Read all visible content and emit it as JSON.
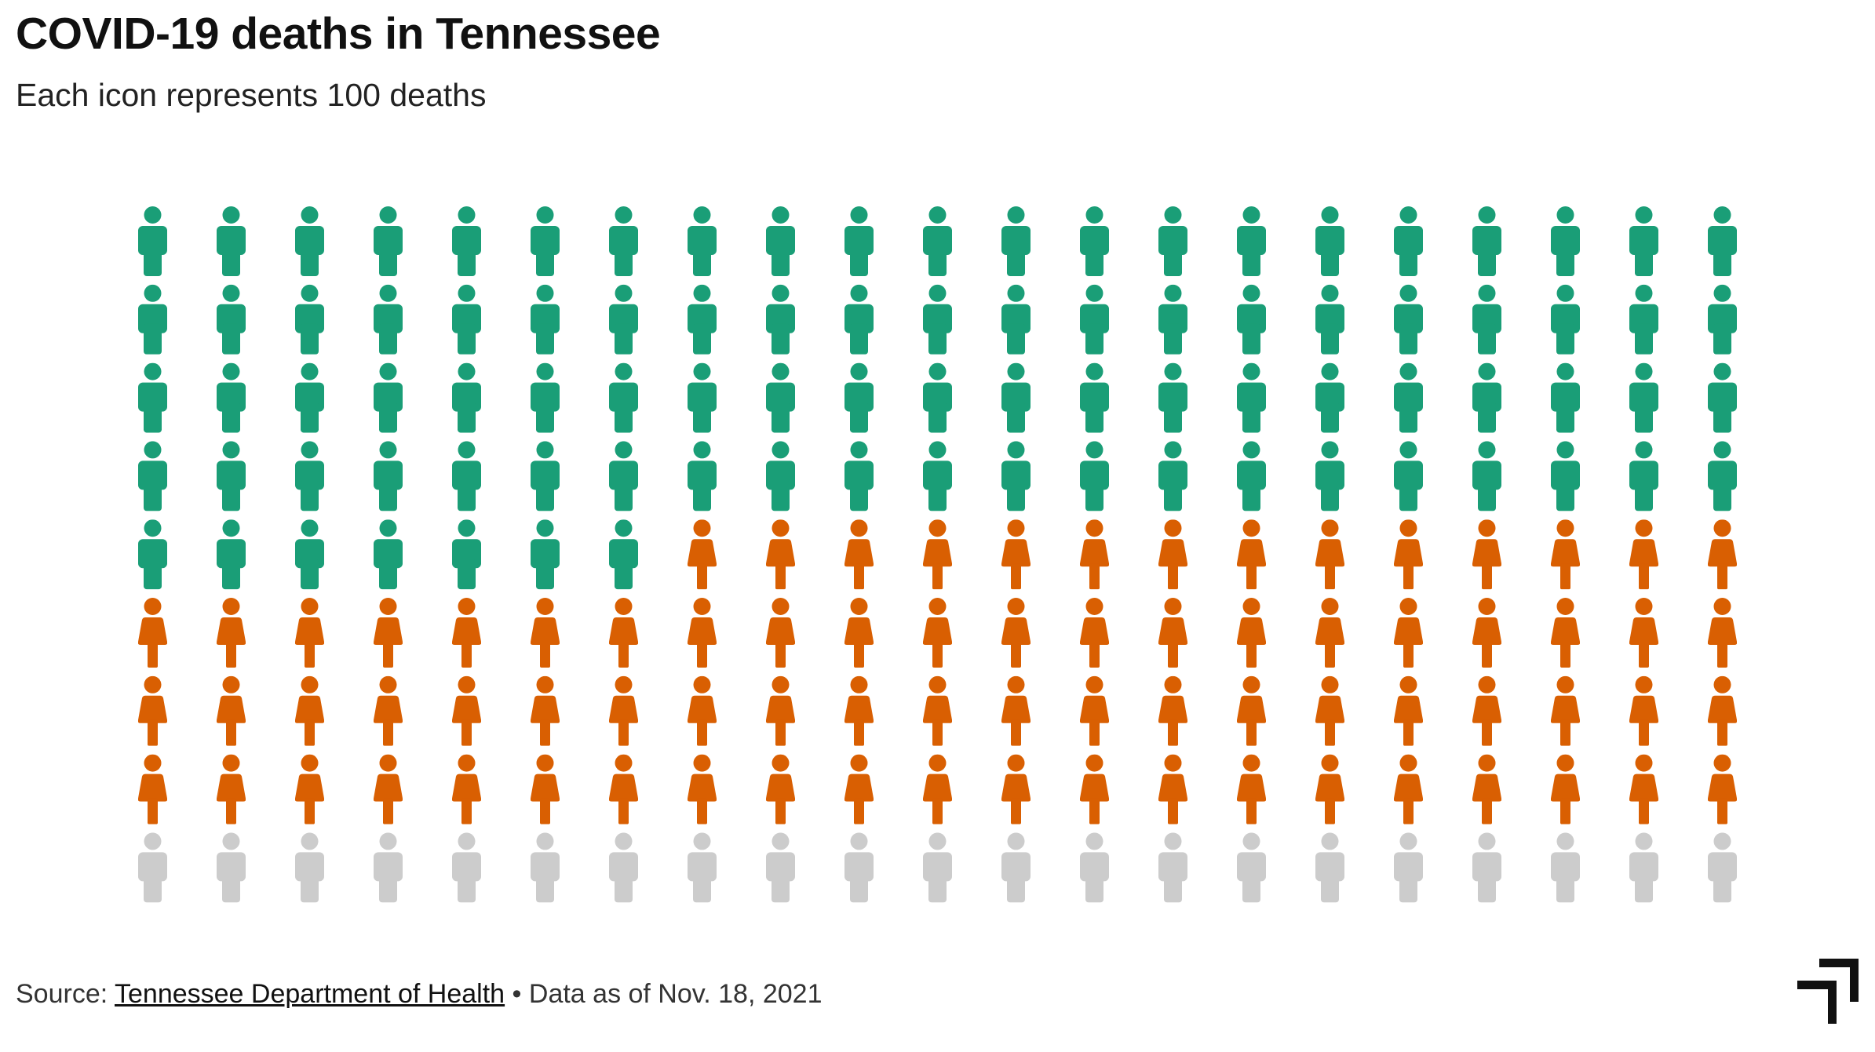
{
  "title": "COVID-19 deaths in Tennessee",
  "subtitle": "Each icon represents 100 deaths",
  "source": {
    "prefix": "Source: ",
    "link_text": "Tennessee Department of Health",
    "suffix": " • Data as of Nov. 18, 2021"
  },
  "chart_data": {
    "type": "waffle-pictogram",
    "title": "COVID-19 deaths in Tennessee",
    "subtitle": "Each icon represents 100 deaths",
    "units_per_icon": 100,
    "columns": 21,
    "rows": 9,
    "fill_order": "row-major, top-left first",
    "series": [
      {
        "icon": "male-person-icon",
        "color": "#1a9e77",
        "icons": 91
      },
      {
        "icon": "female-person-icon",
        "color": "#d95f02",
        "icons": 77.18
      },
      {
        "icon": "male-person-icon",
        "color": "#cccccc",
        "role": "unfilled remainder"
      }
    ],
    "legend": "none",
    "grid": false
  },
  "colors": {
    "green": "#1a9e77",
    "orange": "#d95f02",
    "gray": "#cccccc"
  }
}
